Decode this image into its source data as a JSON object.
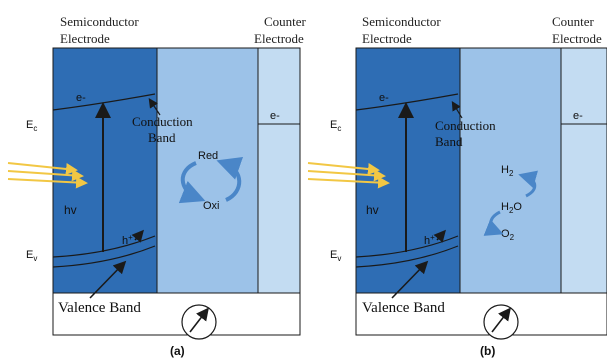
{
  "colors": {
    "semiconductor": "#2e6db4",
    "electrolyte": "#9cc2e8",
    "counter": "#c3dcf2",
    "outline": "#1a1a1a",
    "light": "#f2c744",
    "cycle": "#4a86c8"
  },
  "panels": [
    {
      "semiconductor_label_line1": "Semiconductor",
      "semiconductor_label_line2": "Electrode",
      "counter_label_line1": "Counter",
      "counter_label_line2": "Electrode",
      "ec": "E",
      "ec_sub": "c",
      "ev": "E",
      "ev_sub": "v",
      "electron": "e-",
      "counter_electron": "e-",
      "hv": "hv",
      "hole": "h",
      "hole_sup": "+",
      "conduction_line1": "Conduction",
      "conduction_line2": "Band",
      "valence": "Valence Band",
      "caption": "(a)",
      "reaction": {
        "top": "Red",
        "bottom": "Oxi"
      }
    },
    {
      "semiconductor_label_line1": "Semiconductor",
      "semiconductor_label_line2": "Electrode",
      "counter_label_line1": "Counter",
      "counter_label_line2": "Electrode",
      "ec": "E",
      "ec_sub": "c",
      "ev": "E",
      "ev_sub": "v",
      "electron": "e-",
      "counter_electron": "e-",
      "hv": "hv",
      "hole": "h",
      "hole_sup": "+",
      "conduction_line1": "Conduction",
      "conduction_line2": "Band",
      "valence": "Valence Band",
      "caption": "(b)",
      "reaction": {
        "h2": "H",
        "h2_sub": "2",
        "h2o": "H",
        "h2o_sub": "2",
        "h2o_tail": "O",
        "o2": "O",
        "o2_sub": "2"
      }
    }
  ]
}
